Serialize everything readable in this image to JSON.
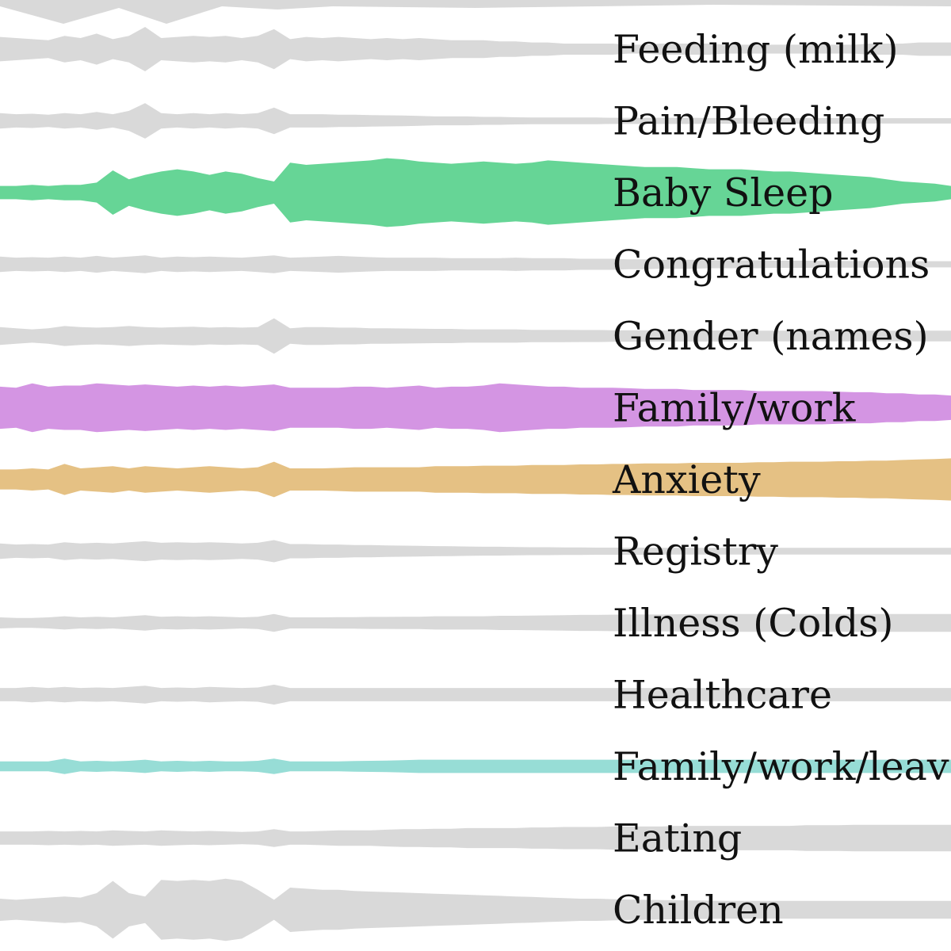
{
  "chart_data": {
    "type": "area",
    "style": "symmetric ridgeline (violin) bands, one per topic, over a shared time axis",
    "x": [
      0,
      1,
      2,
      3,
      4,
      5,
      6,
      7,
      8,
      9,
      10,
      11,
      12,
      13,
      14,
      15,
      16,
      17,
      18,
      19,
      20,
      21,
      22,
      23,
      24,
      25,
      26,
      27,
      28,
      29,
      30,
      31,
      32,
      33,
      34,
      35,
      36,
      37,
      38,
      39,
      40,
      41,
      42,
      43,
      44,
      45,
      46,
      47,
      48,
      49,
      50,
      51,
      52,
      53,
      54,
      55,
      56,
      57,
      58,
      59
    ],
    "grid": false,
    "legend": "none (labels drawn inline on right)",
    "series": [
      {
        "name": "Feeding (milk)",
        "color": "#d9d9d9",
        "values": [
          0.55,
          0.5,
          0.45,
          0.4,
          0.6,
          0.5,
          0.7,
          0.45,
          0.6,
          1.0,
          0.5,
          0.55,
          0.6,
          0.55,
          0.6,
          0.5,
          0.6,
          0.9,
          0.45,
          0.55,
          0.5,
          0.55,
          0.5,
          0.45,
          0.5,
          0.45,
          0.5,
          0.45,
          0.4,
          0.4,
          0.4,
          0.35,
          0.35,
          0.3,
          0.3,
          0.25,
          0.25,
          0.25,
          0.25,
          0.2,
          0.2,
          0.25,
          0.25,
          0.25,
          0.25,
          0.2,
          0.2,
          0.2,
          0.2,
          0.2,
          0.2,
          0.2,
          0.2,
          0.2,
          0.25,
          0.25,
          0.25,
          0.3,
          0.3,
          0.3
        ]
      },
      {
        "name": "Pain/Bleeding",
        "color": "#d9d9d9",
        "values": [
          0.35,
          0.3,
          0.32,
          0.28,
          0.35,
          0.3,
          0.4,
          0.3,
          0.45,
          0.8,
          0.35,
          0.3,
          0.35,
          0.3,
          0.35,
          0.3,
          0.35,
          0.6,
          0.3,
          0.3,
          0.3,
          0.28,
          0.28,
          0.26,
          0.25,
          0.24,
          0.22,
          0.2,
          0.2,
          0.2,
          0.18,
          0.18,
          0.16,
          0.15,
          0.15,
          0.15,
          0.15,
          0.15,
          0.14,
          0.14,
          0.14,
          0.14,
          0.14,
          0.14,
          0.13,
          0.13,
          0.13,
          0.13,
          0.13,
          0.13,
          0.13,
          0.13,
          0.13,
          0.13,
          0.12,
          0.12,
          0.12,
          0.12,
          0.12,
          0.12
        ]
      },
      {
        "name": "Baby Sleep",
        "color": "#66d596",
        "values": [
          0.3,
          0.3,
          0.35,
          0.3,
          0.35,
          0.35,
          0.45,
          1.0,
          0.6,
          0.8,
          0.95,
          1.05,
          0.95,
          0.8,
          0.95,
          0.85,
          0.65,
          0.5,
          1.35,
          1.25,
          1.3,
          1.35,
          1.4,
          1.45,
          1.55,
          1.5,
          1.4,
          1.35,
          1.3,
          1.35,
          1.4,
          1.35,
          1.3,
          1.35,
          1.45,
          1.4,
          1.35,
          1.3,
          1.25,
          1.2,
          1.15,
          1.15,
          1.15,
          1.1,
          1.05,
          1.05,
          1.05,
          1.0,
          0.95,
          0.95,
          0.9,
          0.85,
          0.8,
          0.75,
          0.7,
          0.6,
          0.5,
          0.45,
          0.4,
          0.3
        ]
      },
      {
        "name": "Congratulations",
        "color": "#d9d9d9",
        "values": [
          0.35,
          0.3,
          0.32,
          0.3,
          0.35,
          0.3,
          0.38,
          0.3,
          0.35,
          0.4,
          0.3,
          0.35,
          0.32,
          0.35,
          0.32,
          0.3,
          0.35,
          0.4,
          0.3,
          0.32,
          0.35,
          0.38,
          0.35,
          0.32,
          0.3,
          0.3,
          0.3,
          0.3,
          0.28,
          0.28,
          0.28,
          0.28,
          0.3,
          0.28,
          0.28,
          0.28,
          0.25,
          0.25,
          0.25,
          0.22,
          0.22,
          0.2,
          0.2,
          0.2,
          0.18,
          0.18,
          0.18,
          0.18,
          0.16,
          0.16,
          0.16,
          0.15,
          0.15,
          0.15,
          0.15,
          0.15,
          0.15,
          0.14,
          0.14,
          0.14
        ]
      },
      {
        "name": "Gender (names)",
        "color": "#d9d9d9",
        "values": [
          0.4,
          0.35,
          0.3,
          0.35,
          0.45,
          0.4,
          0.38,
          0.4,
          0.45,
          0.4,
          0.38,
          0.4,
          0.42,
          0.38,
          0.4,
          0.38,
          0.4,
          0.8,
          0.35,
          0.4,
          0.4,
          0.38,
          0.38,
          0.35,
          0.35,
          0.34,
          0.33,
          0.32,
          0.32,
          0.3,
          0.3,
          0.3,
          0.3,
          0.28,
          0.28,
          0.28,
          0.27,
          0.27,
          0.26,
          0.26,
          0.26,
          0.25,
          0.25,
          0.25,
          0.25,
          0.25,
          0.25,
          0.24,
          0.24,
          0.24,
          0.24,
          0.24,
          0.24,
          0.24,
          0.24,
          0.24,
          0.24,
          0.24,
          0.24,
          0.24
        ]
      },
      {
        "name": "Family/work",
        "color": "#d495e3",
        "values": [
          0.95,
          0.9,
          1.1,
          0.95,
          1.0,
          1.0,
          1.1,
          1.05,
          1.0,
          1.05,
          1.0,
          0.95,
          1.0,
          0.95,
          1.0,
          0.95,
          1.0,
          1.05,
          0.9,
          0.9,
          0.9,
          0.9,
          0.95,
          0.95,
          0.9,
          0.95,
          1.0,
          0.9,
          0.95,
          0.95,
          1.0,
          1.1,
          1.05,
          1.0,
          0.95,
          0.95,
          0.9,
          0.9,
          0.9,
          0.88,
          0.85,
          0.85,
          0.85,
          0.8,
          0.8,
          0.8,
          0.8,
          0.75,
          0.75,
          0.75,
          0.75,
          0.75,
          0.72,
          0.7,
          0.7,
          0.65,
          0.65,
          0.6,
          0.6,
          0.55
        ]
      },
      {
        "name": "Anxiety",
        "color": "#e5c184",
        "values": [
          0.45,
          0.45,
          0.5,
          0.45,
          0.7,
          0.5,
          0.55,
          0.6,
          0.5,
          0.6,
          0.55,
          0.5,
          0.55,
          0.6,
          0.55,
          0.5,
          0.55,
          0.8,
          0.5,
          0.5,
          0.5,
          0.52,
          0.55,
          0.55,
          0.55,
          0.55,
          0.55,
          0.6,
          0.6,
          0.6,
          0.62,
          0.62,
          0.62,
          0.65,
          0.65,
          0.65,
          0.68,
          0.68,
          0.7,
          0.7,
          0.72,
          0.72,
          0.72,
          0.75,
          0.75,
          0.75,
          0.75,
          0.78,
          0.78,
          0.8,
          0.8,
          0.8,
          0.82,
          0.82,
          0.85,
          0.85,
          0.88,
          0.9,
          0.92,
          0.95
        ]
      },
      {
        "name": "Registry",
        "color": "#d9d9d9",
        "values": [
          0.35,
          0.3,
          0.32,
          0.3,
          0.4,
          0.35,
          0.38,
          0.35,
          0.4,
          0.45,
          0.38,
          0.4,
          0.38,
          0.4,
          0.38,
          0.35,
          0.38,
          0.5,
          0.32,
          0.32,
          0.3,
          0.3,
          0.28,
          0.28,
          0.26,
          0.25,
          0.24,
          0.23,
          0.22,
          0.21,
          0.2,
          0.2,
          0.19,
          0.18,
          0.18,
          0.17,
          0.17,
          0.16,
          0.16,
          0.16,
          0.16,
          0.15,
          0.15,
          0.15,
          0.15,
          0.15,
          0.15,
          0.15,
          0.15,
          0.15,
          0.15,
          0.15,
          0.15,
          0.15,
          0.15,
          0.15,
          0.15,
          0.15,
          0.15,
          0.15
        ]
      },
      {
        "name": "Illness (Colds)",
        "color": "#d9d9d9",
        "values": [
          0.25,
          0.22,
          0.22,
          0.25,
          0.3,
          0.25,
          0.28,
          0.25,
          0.3,
          0.35,
          0.28,
          0.3,
          0.28,
          0.3,
          0.28,
          0.25,
          0.28,
          0.4,
          0.25,
          0.25,
          0.25,
          0.26,
          0.26,
          0.27,
          0.27,
          0.28,
          0.28,
          0.3,
          0.3,
          0.3,
          0.3,
          0.32,
          0.32,
          0.33,
          0.34,
          0.35,
          0.36,
          0.36,
          0.37,
          0.38,
          0.38,
          0.38,
          0.39,
          0.4,
          0.4,
          0.4,
          0.4,
          0.4,
          0.4,
          0.4,
          0.4,
          0.4,
          0.4,
          0.4,
          0.4,
          0.4,
          0.4,
          0.4,
          0.4,
          0.4
        ]
      },
      {
        "name": "Healthcare",
        "color": "#d9d9d9",
        "values": [
          0.3,
          0.3,
          0.35,
          0.3,
          0.35,
          0.3,
          0.32,
          0.3,
          0.35,
          0.4,
          0.3,
          0.32,
          0.3,
          0.35,
          0.32,
          0.3,
          0.32,
          0.45,
          0.3,
          0.3,
          0.3,
          0.3,
          0.3,
          0.3,
          0.3,
          0.3,
          0.3,
          0.3,
          0.3,
          0.3,
          0.3,
          0.3,
          0.3,
          0.3,
          0.3,
          0.3,
          0.3,
          0.3,
          0.3,
          0.3,
          0.3,
          0.3,
          0.3,
          0.3,
          0.3,
          0.3,
          0.3,
          0.3,
          0.3,
          0.3,
          0.3,
          0.3,
          0.3,
          0.3,
          0.3,
          0.3,
          0.3,
          0.3,
          0.3,
          0.3
        ]
      },
      {
        "name": "Family/work/leave",
        "color": "#97ddd6",
        "values": [
          0.22,
          0.22,
          0.22,
          0.22,
          0.35,
          0.22,
          0.25,
          0.22,
          0.25,
          0.3,
          0.22,
          0.25,
          0.22,
          0.25,
          0.22,
          0.22,
          0.25,
          0.35,
          0.22,
          0.22,
          0.22,
          0.22,
          0.24,
          0.25,
          0.26,
          0.28,
          0.3,
          0.3,
          0.3,
          0.3,
          0.3,
          0.3,
          0.3,
          0.3,
          0.3,
          0.3,
          0.3,
          0.3,
          0.3,
          0.3,
          0.3,
          0.3,
          0.3,
          0.3,
          0.3,
          0.3,
          0.3,
          0.3,
          0.3,
          0.3,
          0.3,
          0.3,
          0.3,
          0.3,
          0.3,
          0.3,
          0.3,
          0.3,
          0.3,
          0.3
        ]
      },
      {
        "name": "Eating",
        "color": "#d9d9d9",
        "values": [
          0.3,
          0.3,
          0.3,
          0.32,
          0.3,
          0.32,
          0.3,
          0.35,
          0.32,
          0.3,
          0.35,
          0.32,
          0.3,
          0.32,
          0.3,
          0.28,
          0.3,
          0.4,
          0.3,
          0.3,
          0.32,
          0.35,
          0.35,
          0.35,
          0.38,
          0.4,
          0.4,
          0.42,
          0.42,
          0.45,
          0.45,
          0.45,
          0.45,
          0.48,
          0.48,
          0.5,
          0.5,
          0.5,
          0.52,
          0.52,
          0.52,
          0.52,
          0.55,
          0.55,
          0.55,
          0.55,
          0.55,
          0.55,
          0.55,
          0.55,
          0.58,
          0.58,
          0.58,
          0.6,
          0.6,
          0.6,
          0.6,
          0.6,
          0.6,
          0.6
        ]
      },
      {
        "name": "Children",
        "color": "#d9d9d9",
        "values": [
          0.5,
          0.45,
          0.5,
          0.55,
          0.6,
          0.55,
          0.75,
          1.3,
          0.75,
          0.6,
          1.35,
          1.3,
          1.35,
          1.3,
          1.4,
          1.3,
          0.9,
          0.45,
          1.0,
          0.95,
          0.9,
          0.9,
          0.85,
          0.82,
          0.8,
          0.78,
          0.75,
          0.72,
          0.7,
          0.68,
          0.65,
          0.63,
          0.6,
          0.58,
          0.55,
          0.53,
          0.5,
          0.5,
          0.48,
          0.46,
          0.45,
          0.44,
          0.43,
          0.42,
          0.41,
          0.4,
          0.4,
          0.4,
          0.4,
          0.4,
          0.4,
          0.4,
          0.4,
          0.4,
          0.4,
          0.4,
          0.4,
          0.4,
          0.4,
          0.4
        ]
      }
    ]
  }
}
